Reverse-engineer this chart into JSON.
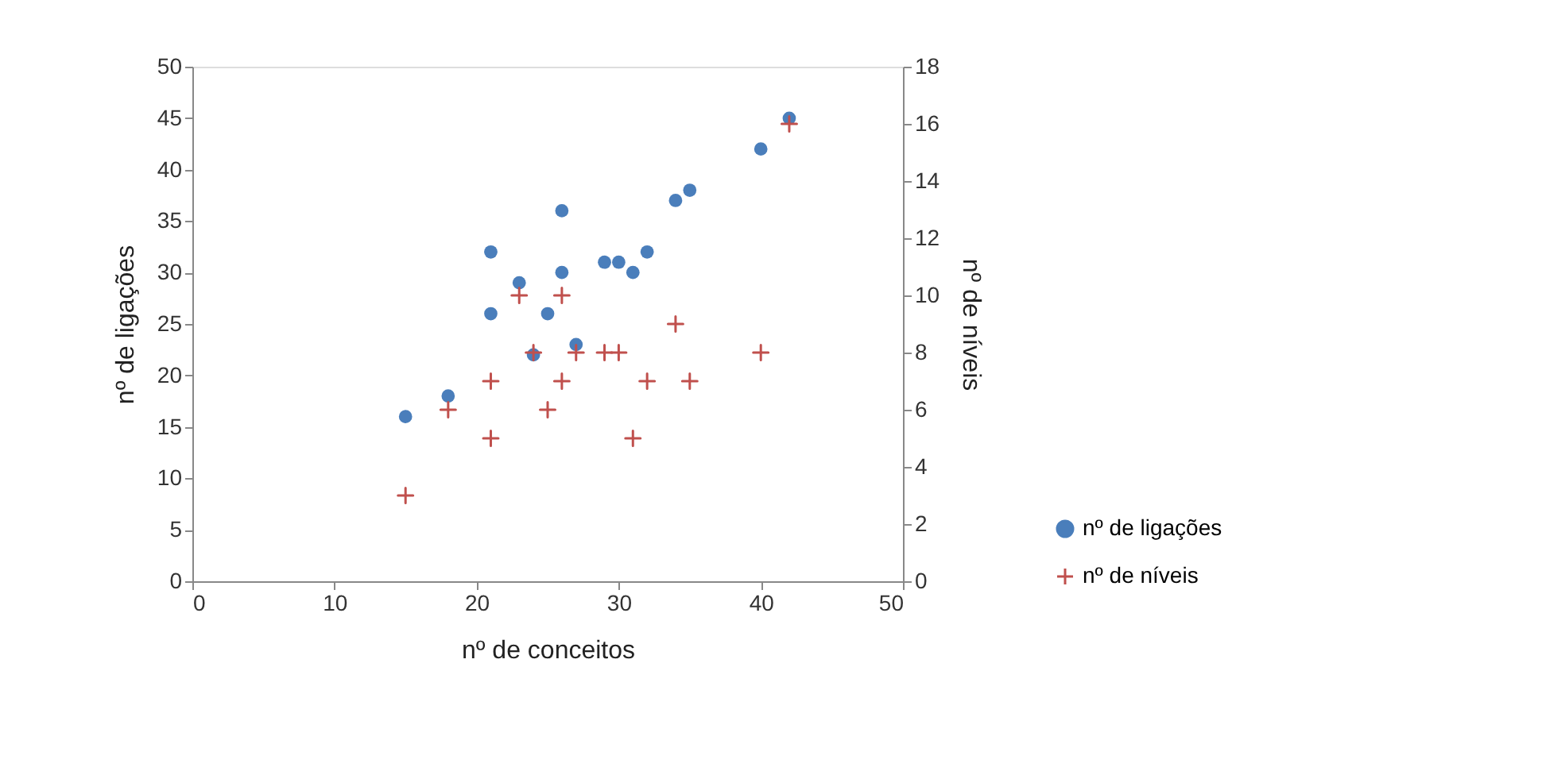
{
  "chart_data": {
    "type": "scatter",
    "xlabel": "nº de conceitos",
    "ylabel": "nº de ligações",
    "y2label": "nº de níveis",
    "xlim": [
      0,
      50
    ],
    "xticks": [
      0,
      10,
      20,
      30,
      40,
      50
    ],
    "ylim": [
      0,
      50
    ],
    "yticks": [
      0,
      5,
      10,
      15,
      20,
      25,
      30,
      35,
      40,
      45,
      50
    ],
    "y2lim": [
      0,
      18
    ],
    "y2ticks": [
      0,
      2,
      4,
      6,
      8,
      10,
      12,
      14,
      16,
      18
    ],
    "grid": false,
    "legend": "right",
    "series": [
      {
        "name": "nº de ligações",
        "color": "#4a7ebb",
        "marker": "circle",
        "x": [
          15,
          18,
          21,
          21,
          23,
          24,
          25,
          26,
          26,
          27,
          29,
          30,
          31,
          32,
          34,
          35,
          40,
          42
        ],
        "values": [
          16,
          18,
          32,
          26,
          29,
          22,
          26,
          36,
          30,
          23,
          31,
          31,
          30,
          32,
          37,
          38,
          42,
          45
        ]
      },
      {
        "name": "nº de níveis",
        "color": "#c0504d",
        "marker": "cross",
        "axis": "y2",
        "x": [
          15,
          18,
          21,
          21,
          23,
          24,
          25,
          26,
          26,
          27,
          29,
          30,
          31,
          32,
          34,
          35,
          40,
          42
        ],
        "values": [
          3,
          6,
          7,
          5,
          10,
          8,
          6,
          10,
          7,
          8,
          8,
          8,
          5,
          7,
          9,
          7,
          8,
          16
        ]
      }
    ]
  }
}
